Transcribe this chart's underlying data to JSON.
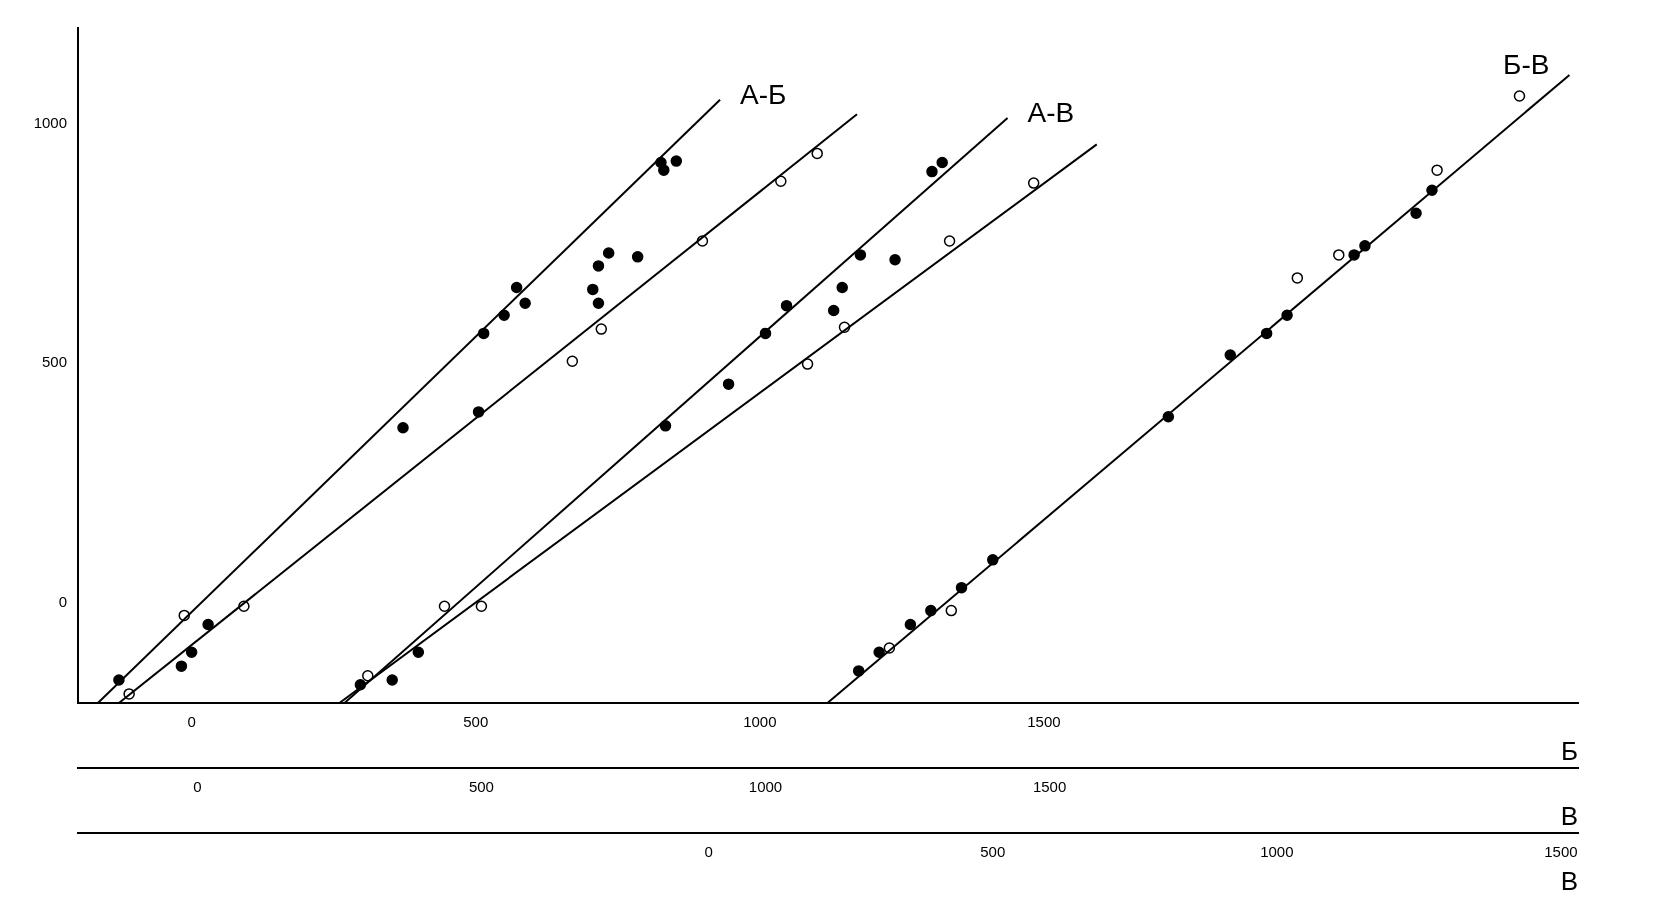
{
  "chart_data": [
    {
      "type": "scatter",
      "marker": "circle",
      "legend": false,
      "grid": false,
      "xlabel": "Б",
      "x2label": "В",
      "xlim": [
        -200,
        2440
      ],
      "xticks": [
        0,
        500,
        1000,
        1500
      ],
      "x2lim": [
        -210,
        2430
      ],
      "x2ticks": [
        0,
        500,
        1000,
        1500
      ],
      "ylim": [
        -210,
        1200
      ],
      "yticks": [
        0,
        500,
        1000
      ],
      "series": [
        {
          "name": "А-Б",
          "type": "line",
          "marker": "none",
          "color": "#000000",
          "x": [
            -165,
            930
          ],
          "values": [
            -210,
            1050
          ]
        },
        {
          "type": "line",
          "marker": "none",
          "color": "#000000",
          "x": [
            -128,
            1171
          ],
          "values": [
            -210,
            1020
          ]
        },
        {
          "color": "#000000",
          "x": [
            -128,
            -18,
            0,
            29,
            372,
            505,
            514,
            550,
            572,
            587,
            706,
            716,
            716,
            734,
            785,
            826,
            831,
            853
          ],
          "values": [
            -162,
            -133,
            -104,
            -46,
            365,
            398,
            562,
            600,
            658,
            625,
            654,
            625,
            703,
            730,
            722,
            919,
            903,
            922
          ]
        },
        {
          "color": "#ffffff",
          "x": [
            -110,
            -13,
            92,
            670,
            721,
            899,
            1037,
            1101
          ],
          "values": [
            -191,
            -27,
            -8,
            504,
            571,
            755,
            880,
            938
          ]
        },
        {
          "name": "А-В",
          "type": "line",
          "marker": "none",
          "color": "#000000",
          "axis": "x2",
          "x": [
            259,
            1426
          ],
          "values": [
            -210,
            1012
          ]
        },
        {
          "type": "line",
          "marker": "none",
          "color": "#000000",
          "axis": "x2",
          "x": [
            250,
            1583
          ],
          "values": [
            -210,
            957
          ]
        },
        {
          "color": "#000000",
          "axis": "x2",
          "x": [
            287,
            343,
            389,
            824,
            935,
            1000,
            1037,
            1120,
            1135,
            1167,
            1228,
            1293,
            1311
          ],
          "values": [
            -172,
            -162,
            -104,
            369,
            456,
            562,
            620,
            610,
            658,
            726,
            716,
            900,
            919
          ]
        },
        {
          "color": "#ffffff",
          "axis": "x2",
          "x": [
            300,
            435,
            500,
            1074,
            1139,
            1324,
            1472
          ],
          "values": [
            -153,
            -8,
            -8,
            498,
            575,
            755,
            876
          ]
        }
      ]
    },
    {
      "type": "scatter",
      "marker": "circle",
      "legend": false,
      "grid": false,
      "tick_labels": "x",
      "xlabel": "В",
      "xlim": [
        -1110,
        1530
      ],
      "xticks": [
        0,
        500,
        1000,
        1500
      ],
      "ylim": [
        -210,
        1200
      ],
      "series": [
        {
          "name": "Б-В",
          "type": "line",
          "marker": "none",
          "color": "#000000",
          "x": [
            209,
            1515
          ],
          "values": [
            -210,
            1102
          ]
        },
        {
          "color": "#000000",
          "x": [
            264,
            300,
            355,
            391,
            445,
            500,
            809,
            918,
            982,
            1018,
            1136,
            1155,
            1245,
            1273
          ],
          "values": [
            -143,
            -104,
            -46,
            -17,
            31,
            89,
            388,
            517,
            562,
            600,
            726,
            745,
            813,
            861
          ]
        },
        {
          "color": "#ffffff",
          "x": [
            318,
            427,
            1036,
            1109,
            1282,
            1427
          ],
          "values": [
            -95,
            -17,
            678,
            726,
            903,
            1058
          ]
        }
      ]
    }
  ]
}
